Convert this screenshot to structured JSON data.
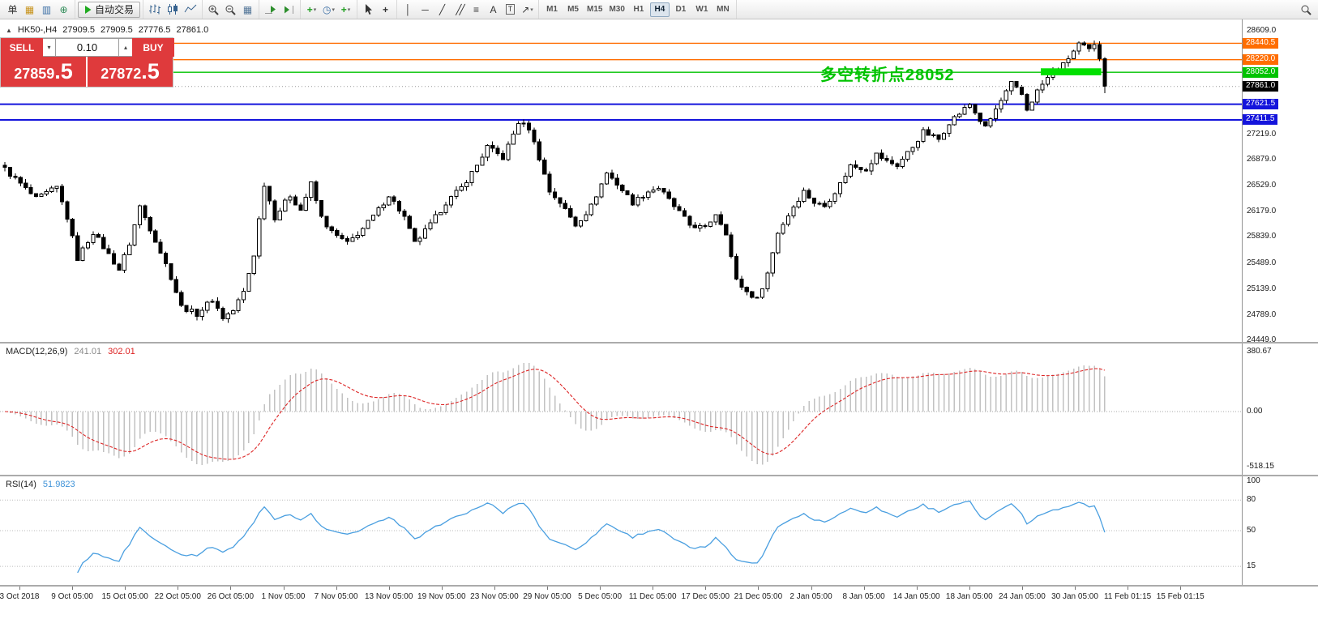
{
  "toolbar": {
    "groups": [
      {
        "name": "file-group",
        "items": [
          {
            "name": "new-order-button",
            "kind": "text",
            "label": "单"
          },
          {
            "name": "market-watch-icon",
            "kind": "glyph",
            "glyph": "▦",
            "color": "#c8941e"
          },
          {
            "name": "data-window-icon",
            "kind": "glyph",
            "glyph": "▥",
            "color": "#3a6ea5"
          },
          {
            "name": "navigator-icon",
            "kind": "glyph",
            "glyph": "⊕",
            "color": "#2e8b57"
          }
        ]
      },
      {
        "name": "autotrade-group",
        "items": [
          {
            "name": "autotrade-button",
            "kind": "autotrade",
            "label": "自动交易"
          }
        ]
      },
      {
        "name": "chart-type-group",
        "items": [
          {
            "name": "bar-chart-icon",
            "kind": "svg",
            "svg": "bars"
          },
          {
            "name": "candlestick-chart-icon",
            "kind": "svg",
            "svg": "candles"
          },
          {
            "name": "line-chart-icon",
            "kind": "svg",
            "svg": "line"
          }
        ]
      },
      {
        "name": "zoom-group",
        "items": [
          {
            "name": "zoom-in-icon",
            "kind": "svg",
            "svg": "zoom-in"
          },
          {
            "name": "zoom-out-icon",
            "kind": "svg",
            "svg": "zoom-out"
          },
          {
            "name": "tile-windows-icon",
            "kind": "glyph",
            "glyph": "▦",
            "color": "#557799"
          }
        ]
      },
      {
        "name": "scroll-group",
        "items": [
          {
            "name": "auto-scroll-icon",
            "kind": "svg",
            "svg": "autoscroll"
          },
          {
            "name": "chart-shift-icon",
            "kind": "svg",
            "svg": "chartshift"
          }
        ]
      },
      {
        "name": "dropdown-group",
        "items": [
          {
            "name": "new-chart-icon",
            "kind": "glyph",
            "glyph": "+",
            "color": "#1d9f1d",
            "bold": true,
            "dropdown": true
          },
          {
            "name": "profiles-icon",
            "kind": "glyph",
            "glyph": "◷",
            "color": "#3a6ea5",
            "dropdown": true
          },
          {
            "name": "indicators-icon",
            "kind": "glyph",
            "glyph": "+",
            "color": "#1d9f1d",
            "bold": true,
            "dropdown": true
          }
        ]
      },
      {
        "name": "pointer-group",
        "items": [
          {
            "name": "cursor-icon",
            "kind": "svg",
            "svg": "cursor"
          },
          {
            "name": "crosshair-icon",
            "kind": "glyph",
            "glyph": "+",
            "color": "#333",
            "bold": true
          }
        ]
      },
      {
        "name": "draw-group",
        "items": [
          {
            "name": "vertical-line-icon",
            "kind": "glyph",
            "glyph": "│",
            "color": "#333"
          },
          {
            "name": "horizontal-line-icon",
            "kind": "glyph",
            "glyph": "─",
            "color": "#333"
          },
          {
            "name": "trendline-icon",
            "kind": "glyph",
            "glyph": "╱",
            "color": "#333"
          },
          {
            "name": "channel-icon",
            "kind": "glyph",
            "glyph": "╱╱",
            "color": "#333",
            "tight": true
          },
          {
            "name": "fibonacci-icon",
            "kind": "glyph",
            "glyph": "≡",
            "color": "#333"
          },
          {
            "name": "text-icon",
            "kind": "glyph",
            "glyph": "A",
            "color": "#333"
          },
          {
            "name": "text-label-icon",
            "kind": "glyph",
            "glyph": "T",
            "color": "#333",
            "boxed": true
          },
          {
            "name": "arrows-icon",
            "kind": "glyph",
            "glyph": "↗",
            "color": "#333",
            "dropdown": true
          }
        ]
      },
      {
        "name": "period-group",
        "kind": "periods"
      }
    ],
    "periods": {
      "labels": [
        "M1",
        "M5",
        "M15",
        "M30",
        "H1",
        "H4",
        "D1",
        "W1",
        "MN"
      ],
      "active": "H4"
    },
    "right_icons": [
      {
        "name": "search-icon",
        "kind": "svg",
        "svg": "magnifier"
      }
    ]
  },
  "chart": {
    "title": {
      "symbol_period": "HK50-,H4",
      "open": "27909.5",
      "high": "27909.5",
      "low": "27776.5",
      "close": "27861.0"
    },
    "trade_panel": {
      "sell_label": "SELL",
      "buy_label": "BUY",
      "volume": "0.10",
      "sell_price_main": "27859",
      "sell_price_frac": ".5",
      "buy_price_main": "27872",
      "buy_price_frac": ".5",
      "accent_color": "#df3a3c"
    },
    "annotation": {
      "text": "多空转折点28052",
      "color": "#00c300"
    },
    "price_axis": {
      "max": 28609,
      "min": 24449,
      "ticks": [
        "28609.0",
        "27219.0",
        "26879.0",
        "26529.0",
        "26179.0",
        "25839.0",
        "25489.0",
        "25139.0",
        "24789.0",
        "24449.0"
      ]
    },
    "hlines": [
      {
        "value": 28440.5,
        "label": "28440.5",
        "color": "#ff6d00",
        "width": 1.4
      },
      {
        "value": 28220.0,
        "label": "28220.0",
        "color": "#ff6d00",
        "width": 1.4
      },
      {
        "value": 28052.0,
        "label": "28052.0",
        "color": "#00c300",
        "width": 1.4
      },
      {
        "value": 27621.5,
        "label": "27621.5",
        "color": "#1414dc",
        "width": 2
      },
      {
        "value": 27411.5,
        "label": "27411.5",
        "color": "#1414dc",
        "width": 2
      }
    ],
    "current_price": {
      "value": 27861.0,
      "label": "27861.0",
      "badge_bg": "#000000"
    },
    "highlight_rect": {
      "from_bar": 200,
      "to_bar": 211,
      "price_top": 28105,
      "price_bottom": 28010,
      "color": "#00e000"
    },
    "time_axis": [
      "3 Oct 2018",
      "9 Oct 05:00",
      "15 Oct 05:00",
      "22 Oct 05:00",
      "26 Oct 05:00",
      "1 Nov 05:00",
      "7 Nov 05:00",
      "13 Nov 05:00",
      "19 Nov 05:00",
      "23 Nov 05:00",
      "29 Nov 05:00",
      "5 Dec 05:00",
      "11 Dec 05:00",
      "17 Dec 05:00",
      "21 Dec 05:00",
      "2 Jan 05:00",
      "8 Jan 05:00",
      "14 Jan 05:00",
      "18 Jan 05:00",
      "24 Jan 05:00",
      "30 Jan 05:00",
      "11 Feb 01:15",
      "15 Feb 01:15"
    ]
  },
  "chart_data": {
    "type": "candlestick",
    "symbol": "HK50-",
    "timeframe": "H4",
    "bar_count": 213,
    "last_close": 27861.0,
    "noise": 70,
    "wick": 55,
    "anchors": [
      [
        0,
        26750
      ],
      [
        3,
        26550
      ],
      [
        6,
        26350
      ],
      [
        10,
        26500
      ],
      [
        12,
        26100
      ],
      [
        14,
        25550
      ],
      [
        17,
        25900
      ],
      [
        20,
        25600
      ],
      [
        22,
        25400
      ],
      [
        24,
        25750
      ],
      [
        26,
        26250
      ],
      [
        29,
        25800
      ],
      [
        32,
        25300
      ],
      [
        34,
        24900
      ],
      [
        37,
        24800
      ],
      [
        40,
        25000
      ],
      [
        42,
        24750
      ],
      [
        44,
        24850
      ],
      [
        46,
        25100
      ],
      [
        48,
        25600
      ],
      [
        50,
        26550
      ],
      [
        52,
        26100
      ],
      [
        55,
        26400
      ],
      [
        57,
        26200
      ],
      [
        59,
        26550
      ],
      [
        61,
        26100
      ],
      [
        63,
        25900
      ],
      [
        66,
        25750
      ],
      [
        69,
        25950
      ],
      [
        72,
        26200
      ],
      [
        74,
        26400
      ],
      [
        77,
        26100
      ],
      [
        79,
        25750
      ],
      [
        82,
        26000
      ],
      [
        85,
        26300
      ],
      [
        88,
        26500
      ],
      [
        91,
        26800
      ],
      [
        93,
        27050
      ],
      [
        96,
        26900
      ],
      [
        99,
        27380
      ],
      [
        101,
        27300
      ],
      [
        103,
        26900
      ],
      [
        105,
        26450
      ],
      [
        107,
        26300
      ],
      [
        110,
        26000
      ],
      [
        113,
        26250
      ],
      [
        116,
        26700
      ],
      [
        118,
        26550
      ],
      [
        121,
        26300
      ],
      [
        124,
        26450
      ],
      [
        126,
        26500
      ],
      [
        129,
        26250
      ],
      [
        132,
        26000
      ],
      [
        135,
        25950
      ],
      [
        137,
        26150
      ],
      [
        139,
        25900
      ],
      [
        141,
        25250
      ],
      [
        143,
        25100
      ],
      [
        145,
        25000
      ],
      [
        147,
        25350
      ],
      [
        149,
        25900
      ],
      [
        152,
        26250
      ],
      [
        154,
        26450
      ],
      [
        156,
        26300
      ],
      [
        158,
        26250
      ],
      [
        161,
        26550
      ],
      [
        163,
        26800
      ],
      [
        166,
        26750
      ],
      [
        168,
        26950
      ],
      [
        170,
        26850
      ],
      [
        172,
        26800
      ],
      [
        175,
        27050
      ],
      [
        177,
        27250
      ],
      [
        180,
        27150
      ],
      [
        182,
        27380
      ],
      [
        184,
        27500
      ],
      [
        186,
        27620
      ],
      [
        188,
        27400
      ],
      [
        189,
        27300
      ],
      [
        191,
        27550
      ],
      [
        194,
        27900
      ],
      [
        196,
        27750
      ],
      [
        197,
        27550
      ],
      [
        199,
        27800
      ],
      [
        202,
        28060
      ],
      [
        204,
        28150
      ],
      [
        207,
        28430
      ],
      [
        209,
        28350
      ],
      [
        210,
        28400
      ],
      [
        211,
        28250
      ],
      [
        212,
        27861
      ]
    ]
  },
  "macd": {
    "label": "MACD(12,26,9)",
    "main_value": "241.01",
    "signal_value": "302.01",
    "axis": [
      "380.67",
      "0.00",
      "-518.15"
    ],
    "histogram_color": "#c2c2c2",
    "signal_color": "#dd2626"
  },
  "rsi": {
    "label": "RSI(14)",
    "value": "51.9823",
    "levels": [
      100,
      80,
      50,
      15
    ],
    "line_color": "#4a9fe0"
  }
}
